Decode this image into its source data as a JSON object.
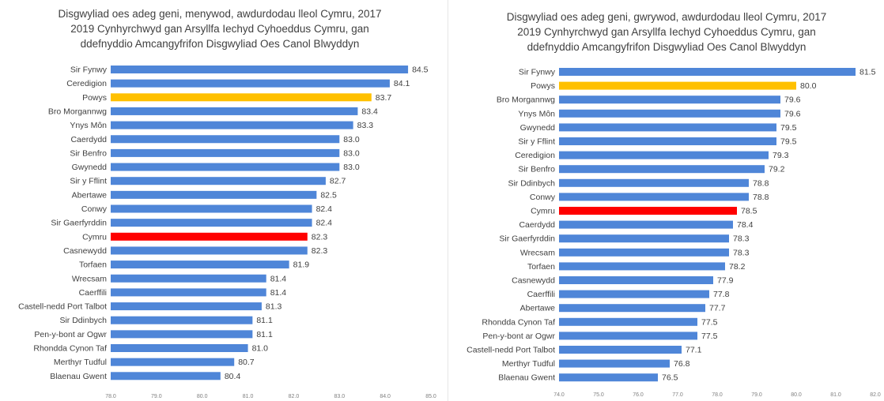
{
  "chart_data": [
    {
      "type": "bar",
      "orientation": "horizontal",
      "title_lines": [
        "Disgwyliad oes adeg geni, menywod, awdurdodau lleol Cymru, 2017",
        "2019 Cynhyrchwyd gan Arsyllfa Iechyd Cyhoeddus Cymru, gan",
        "ddefnyddio Amcangyfrifon Disgwyliad Oes Canol Blwyddyn"
      ],
      "categories": [
        "Sir Fynwy",
        "Ceredigion",
        "Powys",
        "Bro Morgannwg",
        "Ynys Môn",
        "Caerdydd",
        "Sir Benfro",
        "Gwynedd",
        "Sir y Fflint",
        "Abertawe",
        "Conwy",
        "Sir Gaerfyrddin",
        "Cymru",
        "Casnewydd",
        "Torfaen",
        "Wrecsam",
        "Caerffili",
        "Castell-nedd Port Talbot",
        "Sir Ddinbych",
        "Pen-y-bont ar Ogwr",
        "Rhondda Cynon Taf",
        "Merthyr Tudful",
        "Blaenau Gwent"
      ],
      "values": [
        84.5,
        84.1,
        83.7,
        83.4,
        83.3,
        83.0,
        83.0,
        83.0,
        82.7,
        82.5,
        82.4,
        82.4,
        82.3,
        82.3,
        81.9,
        81.4,
        81.4,
        81.3,
        81.1,
        81.1,
        81.0,
        80.7,
        80.4
      ],
      "value_labels": [
        "84.5",
        "84.1",
        "83.7",
        "83.4",
        "83.3",
        "83.0",
        "83.0",
        "83.0",
        "82.7",
        "82.5",
        "82.4",
        "82.4",
        "82.3",
        "82.3",
        "81.9",
        "81.4",
        "81.4",
        "81.3",
        "81.1",
        "81.1",
        "81.0",
        "80.7",
        "80.4"
      ],
      "highlight": {
        "Powys": "#ffc000",
        "Cymru": "#ff0000"
      },
      "bar_color": "#4f86d8",
      "xlim": [
        78.0,
        85.0
      ],
      "xticks": [
        "78.0",
        "79.0",
        "80.0",
        "81.0",
        "82.0",
        "83.0",
        "84.0",
        "85.0"
      ],
      "grid": false,
      "legend": "none"
    },
    {
      "type": "bar",
      "orientation": "horizontal",
      "title_lines": [
        "Disgwyliad oes adeg geni, gwrywod, awdurdodau lleol Cymru, 2017",
        "2019 Cynhyrchwyd gan Arsyllfa Iechyd Cyhoeddus Cymru, gan",
        "ddefnyddio Amcangyfrifon Disgwyliad Oes Canol Blwyddyn"
      ],
      "categories": [
        "Sir Fynwy",
        "Powys",
        "Bro Morgannwg",
        "Ynys Môn",
        "Gwynedd",
        "Sir y Fflint",
        "Ceredigion",
        "Sir Benfro",
        "Sir Ddinbych",
        "Conwy",
        "Cymru",
        "Caerdydd",
        "Sir Gaerfyrddin",
        "Wrecsam",
        "Torfaen",
        "Casnewydd",
        "Caerffili",
        "Abertawe",
        "Rhondda Cynon Taf",
        "Pen-y-bont ar Ogwr",
        "Castell-nedd Port Talbot",
        "Merthyr Tudful",
        "Blaenau Gwent"
      ],
      "values": [
        81.5,
        80.0,
        79.6,
        79.6,
        79.5,
        79.5,
        79.3,
        79.2,
        78.8,
        78.8,
        78.5,
        78.4,
        78.3,
        78.3,
        78.2,
        77.9,
        77.8,
        77.7,
        77.5,
        77.5,
        77.1,
        76.8,
        76.5
      ],
      "value_labels": [
        "81.5",
        "80.0",
        "79.6",
        "79.6",
        "79.5",
        "79.5",
        "79.3",
        "79.2",
        "78.8",
        "78.8",
        "78.5",
        "78.4",
        "78.3",
        "78.3",
        "78.2",
        "77.9",
        "77.8",
        "77.7",
        "77.5",
        "77.5",
        "77.1",
        "76.8",
        "76.5"
      ],
      "highlight": {
        "Powys": "#ffc000",
        "Cymru": "#ff0000"
      },
      "bar_color": "#4f86d8",
      "xlim": [
        74.0,
        82.0
      ],
      "xticks": [
        "74.0",
        "75.0",
        "76.0",
        "77.0",
        "78.0",
        "79.0",
        "80.0",
        "81.0",
        "82.0"
      ],
      "grid": false,
      "legend": "none"
    }
  ]
}
